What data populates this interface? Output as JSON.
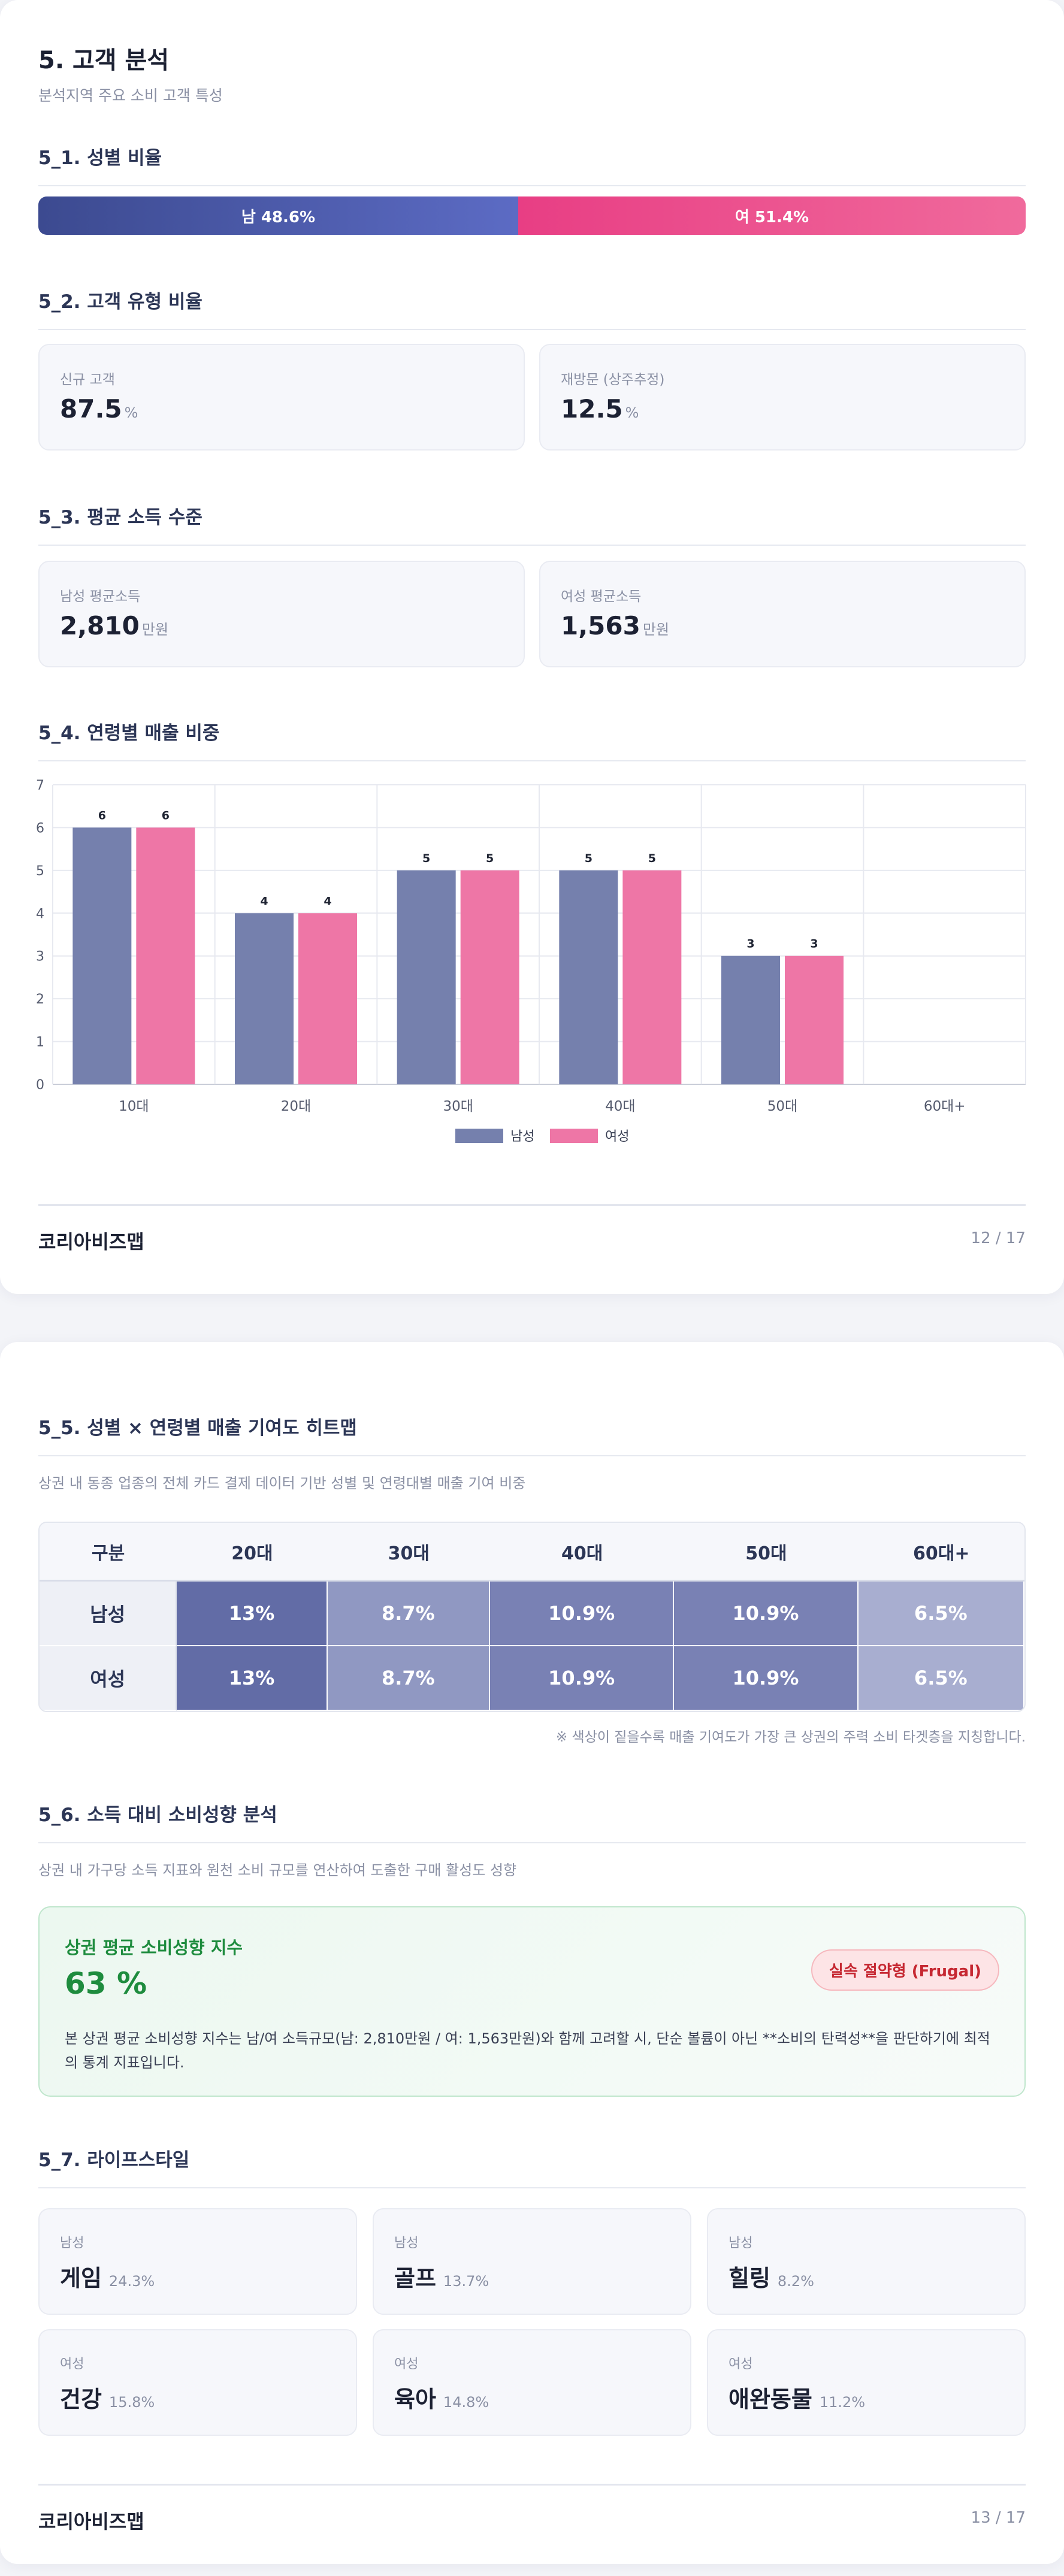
{
  "page1": {
    "title": "5. 고객 분석",
    "subtitle": "분석지역 주요 소비 고객 특성",
    "gender": {
      "heading": "5_1. 성별 비율",
      "male_label": "남 48.6%",
      "male_pct": 48.6,
      "female_label": "여 51.4%",
      "female_pct": 51.4,
      "male_color": "#4a58a8",
      "female_color": "#ec4d8b"
    },
    "customer_type": {
      "heading": "5_2. 고객 유형 비율",
      "cards": [
        {
          "label": "신규 고객",
          "value": "87.5",
          "unit": "%"
        },
        {
          "label": "재방문 (상주추정)",
          "value": "12.5",
          "unit": "%"
        }
      ]
    },
    "income": {
      "heading": "5_3. 평균 소득 수준",
      "cards": [
        {
          "label": "남성 평균소득",
          "value": "2,810",
          "unit": "만원"
        },
        {
          "label": "여성 평균소득",
          "value": "1,563",
          "unit": "만원"
        }
      ]
    },
    "age_sales": {
      "heading": "5_4. 연령별 매출 비중"
    },
    "footer": {
      "brand": "코리아비즈맵",
      "page": "12 / 17"
    }
  },
  "chart_data": {
    "type": "bar",
    "categories": [
      "10대",
      "20대",
      "30대",
      "40대",
      "50대",
      "60대+"
    ],
    "series": [
      {
        "name": "남성",
        "values": [
          6,
          4,
          5,
          5,
          3,
          0
        ],
        "color": "#7580ad"
      },
      {
        "name": "여성",
        "values": [
          6,
          4,
          5,
          5,
          3,
          0
        ],
        "color": "#ee76a6"
      }
    ],
    "ylim": [
      0,
      7
    ],
    "yticks": [
      0,
      1,
      2,
      3,
      4,
      5,
      6,
      7
    ],
    "data_labels": true,
    "grid": true,
    "legend": "bottom"
  },
  "page2": {
    "heatmap": {
      "heading": "5_5. 성별 × 연령별 매출 기여도 히트맵",
      "desc": "상권 내 동종 업종의 전체 카드 결제 데이터 기반 성별 및 연령대별 매출 기여 비중",
      "columns": [
        "구분",
        "20대",
        "30대",
        "40대",
        "50대",
        "60대+"
      ],
      "rows": [
        {
          "label": "남성",
          "cells": [
            "13%",
            "8.7%",
            "10.9%",
            "10.9%",
            "6.5%"
          ],
          "values": [
            13,
            8.7,
            10.9,
            10.9,
            6.5
          ]
        },
        {
          "label": "여성",
          "cells": [
            "13%",
            "8.7%",
            "10.9%",
            "10.9%",
            "6.5%"
          ],
          "values": [
            13,
            8.7,
            10.9,
            10.9,
            6.5
          ]
        }
      ],
      "note": "※ 색상이 짙을수록 매출 기여도가 가장 큰 상권의 주력 소비 타겟층을 지칭합니다."
    },
    "spending": {
      "heading": "5_6. 소득 대비 소비성향 분석",
      "desc": "상권 내 가구당 소득 지표와 원천 소비 규모를 연산하여 도출한 구매 활성도 성향",
      "box_title": "상권 평균 소비성향 지수",
      "value": "63 %",
      "badge": "실속 절약형 (Frugal)",
      "text": "본 상권 평균 소비성향 지수는 남/여 소득규모(남: 2,810만원 / 여: 1,563만원)와 함께 고려할 시, 단순 볼륨이 아닌 **소비의 탄력성**을 판단하기에 최적의 통계 지표입니다."
    },
    "lifestyle": {
      "heading": "5_7. 라이프스타일",
      "items": [
        {
          "gender": "남성",
          "name": "게임",
          "pct": "24.3%"
        },
        {
          "gender": "남성",
          "name": "골프",
          "pct": "13.7%"
        },
        {
          "gender": "남성",
          "name": "힐링",
          "pct": "8.2%"
        },
        {
          "gender": "여성",
          "name": "건강",
          "pct": "15.8%"
        },
        {
          "gender": "여성",
          "name": "육아",
          "pct": "14.8%"
        },
        {
          "gender": "여성",
          "name": "애완동물",
          "pct": "11.2%"
        }
      ]
    },
    "footer": {
      "brand": "코리아비즈맵",
      "page": "13 / 17"
    }
  }
}
